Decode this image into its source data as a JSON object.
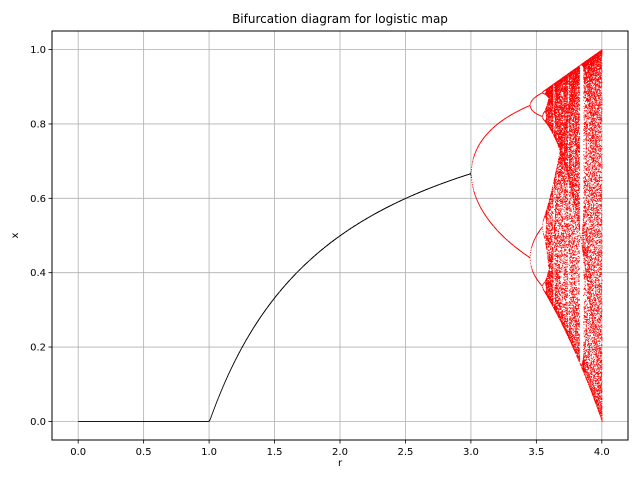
{
  "chart_data": {
    "type": "scatter",
    "title": "Bifurcation diagram for logistic map",
    "xlabel": "r",
    "ylabel": "x",
    "xlim": [
      -0.2,
      4.2
    ],
    "ylim": [
      -0.05,
      1.05
    ],
    "xticks": [
      0.0,
      0.5,
      1.0,
      1.5,
      2.0,
      2.5,
      3.0,
      3.5,
      4.0
    ],
    "yticks": [
      0.0,
      0.2,
      0.4,
      0.6,
      0.8,
      1.0
    ],
    "xtick_labels": [
      "0.0",
      "0.5",
      "1.0",
      "1.5",
      "2.0",
      "2.5",
      "3.0",
      "3.5",
      "4.0"
    ],
    "ytick_labels": [
      "0.0",
      "0.2",
      "0.4",
      "0.6",
      "0.8",
      "1.0"
    ],
    "grid": true,
    "r_range": [
      0.0,
      4.0
    ],
    "point_size": "tiny",
    "series": [
      {
        "r_range": [
          0.0,
          3.0
        ],
        "color": "#000000",
        "marker": "dot"
      },
      {
        "r_range": [
          3.0,
          4.0
        ],
        "color": "#ff0000",
        "marker": "dot"
      }
    ]
  }
}
